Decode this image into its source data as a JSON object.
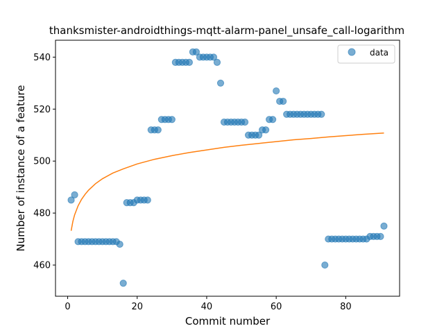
{
  "chart_data": {
    "type": "scatter",
    "title": "thanksmister-androidthings-mqtt-alarm-panel_unsafe_call-logarithm",
    "xlabel": "Commit number",
    "ylabel": "Number of instance of a feature",
    "xlim": [
      -3.5,
      95.5
    ],
    "ylim": [
      448,
      546.5
    ],
    "xticks": [
      0,
      20,
      40,
      60,
      80
    ],
    "yticks": [
      460,
      480,
      500,
      520,
      540
    ],
    "grid": false,
    "legend_position": "top-right",
    "colors": {
      "points": "#1f77b4",
      "fit": "#ff7f0e"
    },
    "series": [
      {
        "name": "data",
        "kind": "scatter",
        "x": [
          1,
          2,
          3,
          4,
          5,
          6,
          7,
          8,
          9,
          10,
          11,
          12,
          13,
          14,
          15,
          16,
          17,
          18,
          19,
          20,
          21,
          22,
          23,
          24,
          25,
          26,
          27,
          28,
          29,
          30,
          31,
          32,
          33,
          34,
          35,
          36,
          37,
          38,
          39,
          40,
          41,
          42,
          43,
          44,
          45,
          46,
          47,
          48,
          49,
          50,
          51,
          52,
          53,
          54,
          55,
          56,
          57,
          58,
          59,
          60,
          61,
          62,
          63,
          64,
          65,
          66,
          67,
          68,
          69,
          70,
          71,
          72,
          73,
          74,
          75,
          76,
          77,
          78,
          79,
          80,
          81,
          82,
          83,
          84,
          85,
          86,
          87,
          88,
          89,
          90,
          91
        ],
        "y": [
          485,
          487,
          469,
          469,
          469,
          469,
          469,
          469,
          469,
          469,
          469,
          469,
          469,
          469,
          468,
          453,
          484,
          484,
          484,
          485,
          485,
          485,
          485,
          512,
          512,
          512,
          516,
          516,
          516,
          516,
          538,
          538,
          538,
          538,
          538,
          542,
          542,
          540,
          540,
          540,
          540,
          540,
          538,
          530,
          515,
          515,
          515,
          515,
          515,
          515,
          515,
          510,
          510,
          510,
          510,
          512,
          512,
          516,
          516,
          527,
          523,
          523,
          518,
          518,
          518,
          518,
          518,
          518,
          518,
          518,
          518,
          518,
          518,
          460,
          470,
          470,
          470,
          470,
          470,
          470,
          470,
          470,
          470,
          470,
          470,
          470,
          471,
          471,
          471,
          471,
          475
        ]
      },
      {
        "kind": "line",
        "x": [
          1,
          1.5,
          2,
          3,
          4,
          5,
          6,
          8,
          10,
          13,
          16,
          20,
          25,
          30,
          35,
          40,
          45,
          50,
          55,
          60,
          65,
          70,
          75,
          80,
          85,
          91
        ],
        "y": [
          473.2,
          476.8,
          479.3,
          482.8,
          485.3,
          487.2,
          488.8,
          491.3,
          493.2,
          495.4,
          497.0,
          498.9,
          500.7,
          502.1,
          503.3,
          504.3,
          505.3,
          506.1,
          506.8,
          507.5,
          508.2,
          508.7,
          509.3,
          509.8,
          510.3,
          510.8
        ]
      }
    ],
    "legend": [
      {
        "label": "data",
        "marker": "circle"
      }
    ]
  }
}
